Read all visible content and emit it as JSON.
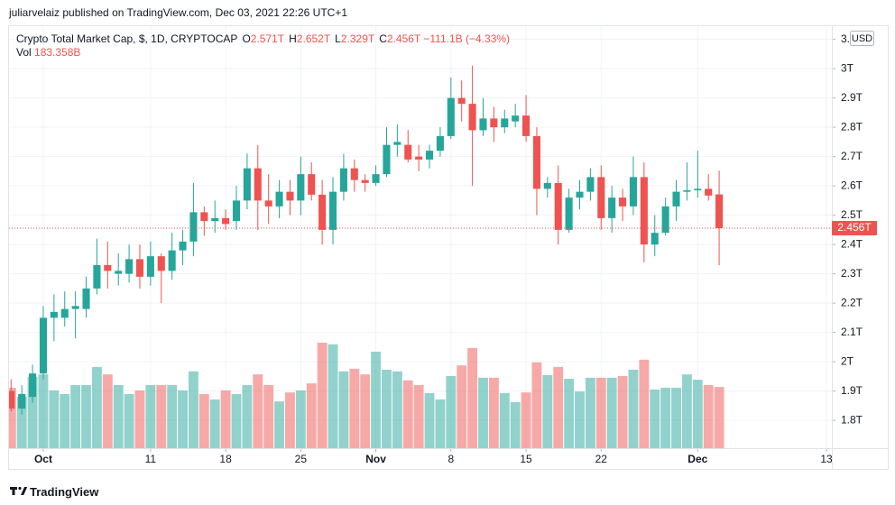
{
  "header": {
    "publisher": "juliarvelaiz published on TradingView.com, Dec 03, 2021 22:26 UTC+1"
  },
  "footer": {
    "brand": "TradingView"
  },
  "chart_data": {
    "type": "candlestick",
    "title": "Crypto Total Market Cap, $, 1D, CRYPTOCAP",
    "ohlc_legend": [
      {
        "key": "O",
        "value": "2.571T"
      },
      {
        "key": "H",
        "value": "2.652T"
      },
      {
        "key": "L",
        "value": "2.329T"
      },
      {
        "key": "C",
        "value": "2.456T"
      }
    ],
    "change": "−111.1B (−4.33%)",
    "volume_legend": {
      "key": "Vol",
      "value": "183.358B"
    },
    "currency": "USD",
    "up_color": "#26a69a",
    "down_color": "#ef5350",
    "x": [
      "2021-09-28",
      "2021-09-29",
      "2021-09-30",
      "2021-10-01",
      "2021-10-02",
      "2021-10-03",
      "2021-10-04",
      "2021-10-05",
      "2021-10-06",
      "2021-10-07",
      "2021-10-08",
      "2021-10-09",
      "2021-10-10",
      "2021-10-11",
      "2021-10-12",
      "2021-10-13",
      "2021-10-14",
      "2021-10-15",
      "2021-10-16",
      "2021-10-17",
      "2021-10-18",
      "2021-10-19",
      "2021-10-20",
      "2021-10-21",
      "2021-10-22",
      "2021-10-23",
      "2021-10-24",
      "2021-10-25",
      "2021-10-26",
      "2021-10-27",
      "2021-10-28",
      "2021-10-29",
      "2021-10-30",
      "2021-10-31",
      "2021-11-01",
      "2021-11-02",
      "2021-11-03",
      "2021-11-04",
      "2021-11-05",
      "2021-11-06",
      "2021-11-07",
      "2021-11-08",
      "2021-11-09",
      "2021-11-10",
      "2021-11-11",
      "2021-11-12",
      "2021-11-13",
      "2021-11-14",
      "2021-11-15",
      "2021-11-16",
      "2021-11-17",
      "2021-11-18",
      "2021-11-19",
      "2021-11-20",
      "2021-11-21",
      "2021-11-22",
      "2021-11-23",
      "2021-11-24",
      "2021-11-25",
      "2021-11-26",
      "2021-11-27",
      "2021-11-28",
      "2021-11-29",
      "2021-11-30",
      "2021-12-01",
      "2021-12-02",
      "2021-12-03"
    ],
    "open": [
      1.9,
      1.84,
      1.88,
      1.96,
      2.15,
      2.15,
      2.18,
      2.18,
      2.25,
      2.33,
      2.3,
      2.3,
      2.35,
      2.29,
      2.36,
      2.31,
      2.38,
      2.41,
      2.51,
      2.48,
      2.49,
      2.48,
      2.55,
      2.66,
      2.55,
      2.53,
      2.58,
      2.55,
      2.64,
      2.57,
      2.45,
      2.58,
      2.66,
      2.62,
      2.61,
      2.64,
      2.74,
      2.74,
      2.7,
      2.69,
      2.72,
      2.77,
      2.9,
      2.88,
      2.79,
      2.83,
      2.8,
      2.82,
      2.84,
      2.77,
      2.59,
      2.61,
      2.45,
      2.56,
      2.58,
      2.63,
      2.49,
      2.56,
      2.53,
      2.63,
      2.4,
      2.44,
      2.53,
      2.58,
      2.585,
      2.59,
      2.571
    ],
    "high": [
      1.94,
      1.92,
      1.99,
      2.19,
      2.23,
      2.24,
      2.24,
      2.29,
      2.42,
      2.41,
      2.37,
      2.4,
      2.4,
      2.41,
      2.37,
      2.44,
      2.45,
      2.61,
      2.53,
      2.55,
      2.52,
      2.6,
      2.71,
      2.74,
      2.64,
      2.62,
      2.62,
      2.7,
      2.68,
      2.62,
      2.63,
      2.71,
      2.69,
      2.64,
      2.67,
      2.8,
      2.81,
      2.79,
      2.74,
      2.74,
      2.8,
      2.97,
      2.96,
      3.01,
      2.9,
      2.87,
      2.86,
      2.88,
      2.91,
      2.8,
      2.63,
      2.67,
      2.59,
      2.62,
      2.66,
      2.67,
      2.6,
      2.59,
      2.7,
      2.68,
      2.5,
      2.56,
      2.62,
      2.68,
      2.72,
      2.64,
      2.652
    ],
    "low": [
      1.83,
      1.82,
      1.86,
      1.94,
      2.07,
      2.12,
      2.08,
      2.15,
      2.23,
      2.25,
      2.26,
      2.27,
      2.25,
      2.26,
      2.2,
      2.28,
      2.33,
      2.36,
      2.43,
      2.44,
      2.45,
      2.45,
      2.52,
      2.45,
      2.47,
      2.49,
      2.5,
      2.5,
      2.55,
      2.4,
      2.4,
      2.55,
      2.58,
      2.58,
      2.6,
      2.63,
      2.7,
      2.68,
      2.65,
      2.66,
      2.7,
      2.76,
      2.82,
      2.6,
      2.77,
      2.75,
      2.78,
      2.8,
      2.75,
      2.5,
      2.56,
      2.4,
      2.44,
      2.52,
      2.55,
      2.45,
      2.44,
      2.48,
      2.5,
      2.34,
      2.36,
      2.43,
      2.48,
      2.55,
      2.56,
      2.55,
      2.329
    ],
    "close": [
      1.84,
      1.89,
      1.96,
      2.15,
      2.17,
      2.18,
      2.19,
      2.25,
      2.33,
      2.31,
      2.31,
      2.35,
      2.29,
      2.36,
      2.31,
      2.38,
      2.41,
      2.51,
      2.48,
      2.49,
      2.47,
      2.55,
      2.66,
      2.55,
      2.53,
      2.58,
      2.55,
      2.64,
      2.57,
      2.45,
      2.58,
      2.66,
      2.62,
      2.61,
      2.64,
      2.74,
      2.75,
      2.69,
      2.69,
      2.72,
      2.77,
      2.9,
      2.88,
      2.79,
      2.83,
      2.8,
      2.83,
      2.84,
      2.77,
      2.59,
      2.61,
      2.45,
      2.56,
      2.58,
      2.63,
      2.49,
      2.56,
      2.53,
      2.63,
      2.4,
      2.44,
      2.53,
      2.58,
      2.585,
      2.59,
      2.567,
      2.456
    ],
    "volume": [
      181,
      154,
      213,
      221,
      173,
      162,
      189,
      189,
      243,
      221,
      189,
      162,
      173,
      189,
      189,
      189,
      173,
      230,
      162,
      146,
      173,
      162,
      189,
      221,
      189,
      140,
      167,
      173,
      194,
      316,
      311,
      230,
      238,
      221,
      289,
      235,
      230,
      203,
      189,
      165,
      146,
      216,
      248,
      300,
      211,
      211,
      165,
      138,
      167,
      257,
      219,
      243,
      208,
      170,
      211,
      211,
      211,
      216,
      235,
      265,
      176,
      181,
      181,
      221,
      205,
      189,
      183.358
    ],
    "xlim": [
      "2021-09-27",
      "2021-12-13"
    ],
    "xticks": [
      {
        "value": "2021-10-01",
        "label": "Oct"
      },
      {
        "value": "2021-10-11",
        "label": "11"
      },
      {
        "value": "2021-10-18",
        "label": "18"
      },
      {
        "value": "2021-10-25",
        "label": "25"
      },
      {
        "value": "2021-11-01",
        "label": "Nov"
      },
      {
        "value": "2021-11-08",
        "label": "8"
      },
      {
        "value": "2021-11-15",
        "label": "15"
      },
      {
        "value": "2021-11-22",
        "label": "22"
      },
      {
        "value": "2021-12-01",
        "label": "Dec"
      },
      {
        "value": "2021-12-13",
        "label": "13"
      }
    ],
    "ylim": [
      1.705,
      3.142
    ],
    "yticks": [
      {
        "value": 1.8,
        "label": "1.8T"
      },
      {
        "value": 1.9,
        "label": "1.9T"
      },
      {
        "value": 2,
        "label": "2T"
      },
      {
        "value": 2.1,
        "label": "2.1T"
      },
      {
        "value": 2.2,
        "label": "2.2T"
      },
      {
        "value": 2.3,
        "label": "2.3T"
      },
      {
        "value": 2.4,
        "label": "2.4T"
      },
      {
        "value": 2.5,
        "label": "2.5T"
      },
      {
        "value": 2.6,
        "label": "2.6T"
      },
      {
        "value": 2.7,
        "label": "2.7T"
      },
      {
        "value": 2.8,
        "label": "2.8T"
      },
      {
        "value": 2.9,
        "label": "2.9T"
      },
      {
        "value": 3,
        "label": "3T"
      },
      {
        "value": 3.1,
        "label": "3.1T"
      }
    ],
    "price_line": {
      "value": 2.456,
      "label": "2.456T"
    },
    "grid": true
  }
}
